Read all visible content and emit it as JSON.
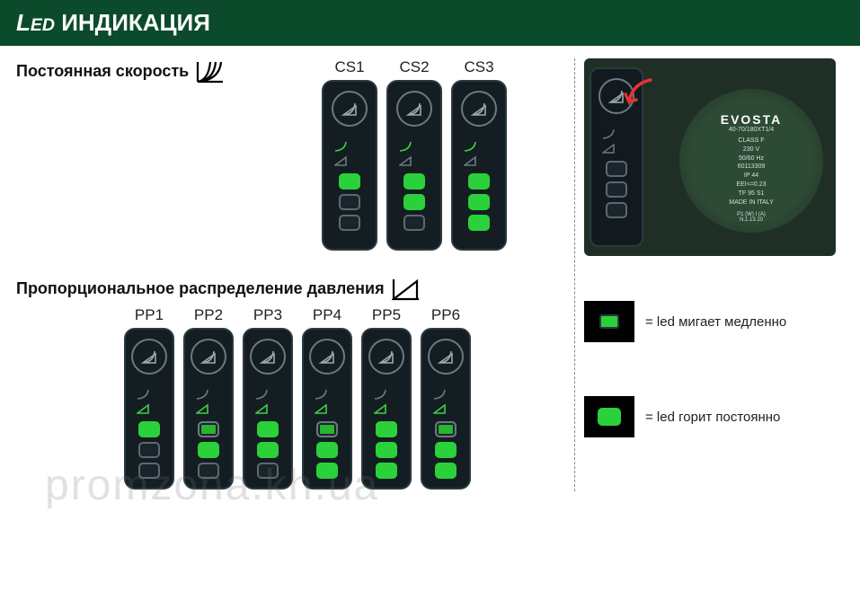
{
  "header": {
    "prefix": "L",
    "small": "ED",
    "title": "ИНДИКАЦИЯ"
  },
  "colors": {
    "header_bg": "#0b4a2a",
    "panel_bg": "#141d22",
    "panel_border": "#2a3a42",
    "led_on": "#2bd13a",
    "led_border_off": "#5a6a72",
    "mode_on": "#3bd143",
    "arrow": "#e3342f"
  },
  "section_cs": {
    "title": "Постоянная скорость",
    "icon": "constant-speed",
    "panels": [
      {
        "label": "CS1",
        "mode_icon_on": "cs",
        "leds": [
          "on-solid",
          "off",
          "off"
        ]
      },
      {
        "label": "CS2",
        "mode_icon_on": "cs",
        "leds": [
          "on-solid",
          "on-solid",
          "off"
        ]
      },
      {
        "label": "CS3",
        "mode_icon_on": "cs",
        "leds": [
          "on-solid",
          "on-solid",
          "on-solid"
        ]
      }
    ]
  },
  "section_pp": {
    "title": "Пропорциональное распределение давления",
    "icon": "proportional-pressure",
    "panels": [
      {
        "label": "PP1",
        "mode_icon_on": "pp",
        "leds": [
          "on-solid",
          "off",
          "off"
        ]
      },
      {
        "label": "PP2",
        "mode_icon_on": "pp",
        "leds": [
          "on-blink",
          "on-solid",
          "off"
        ]
      },
      {
        "label": "PP3",
        "mode_icon_on": "pp",
        "leds": [
          "on-solid",
          "on-solid",
          "off"
        ]
      },
      {
        "label": "PP4",
        "mode_icon_on": "pp",
        "leds": [
          "on-blink",
          "on-solid",
          "on-solid"
        ]
      },
      {
        "label": "PP5",
        "mode_icon_on": "pp",
        "leds": [
          "on-solid",
          "on-solid",
          "on-solid"
        ]
      },
      {
        "label": "PP6",
        "mode_icon_on": "pp",
        "leds": [
          "on-blink",
          "on-solid",
          "on-solid"
        ]
      }
    ]
  },
  "legend": {
    "blink": "= led мигает медленно",
    "solid": "= led горит постоянно"
  },
  "product": {
    "brand": "EVOSTA",
    "model": "40-70/180XT1/4",
    "specs": [
      "CLASS F",
      "230 V",
      "50/60 Hz",
      "60113309",
      "IP 44",
      "EEI<=0.23",
      "TF 95 S1",
      "MADE IN ITALY"
    ],
    "bottom1": "P1 (W)   I (A)",
    "bottom2": "N.1.13.10"
  },
  "watermark": "promzona.kh.ua"
}
